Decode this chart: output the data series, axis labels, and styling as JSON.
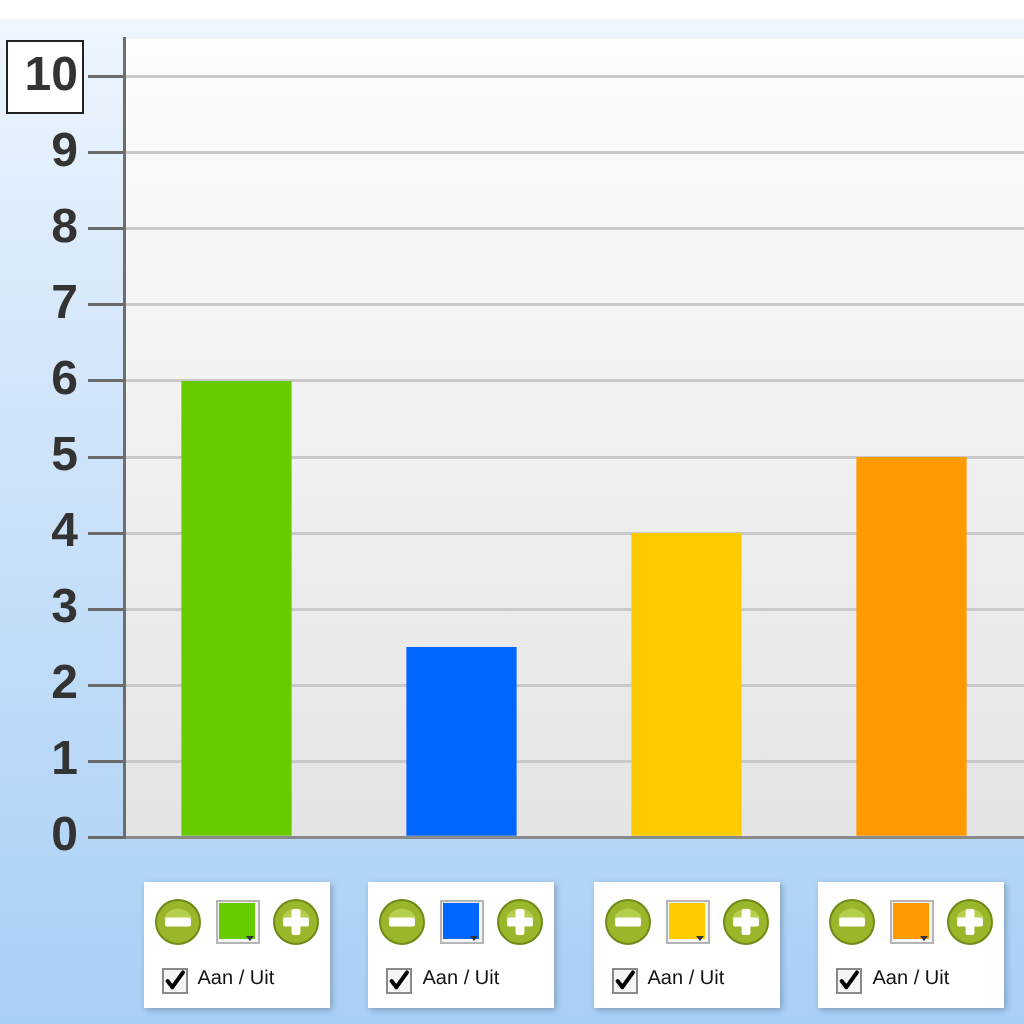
{
  "chart_data": {
    "type": "bar",
    "categories": [
      null,
      null,
      null,
      null
    ],
    "values": [
      6,
      2.5,
      4,
      5
    ],
    "colors": [
      "#66cc00",
      "#0066ff",
      "#ffcc00",
      "#ff9900"
    ],
    "ylim": [
      0,
      10.5
    ],
    "yticks": [
      0,
      1,
      2,
      3,
      4,
      5,
      6,
      7,
      8,
      9,
      10
    ],
    "grid": "y",
    "legend": false,
    "annotations": [
      "Aan / Uit",
      "Aan / Uit",
      "Aan / Uit",
      "Aan / Uit"
    ]
  }
}
